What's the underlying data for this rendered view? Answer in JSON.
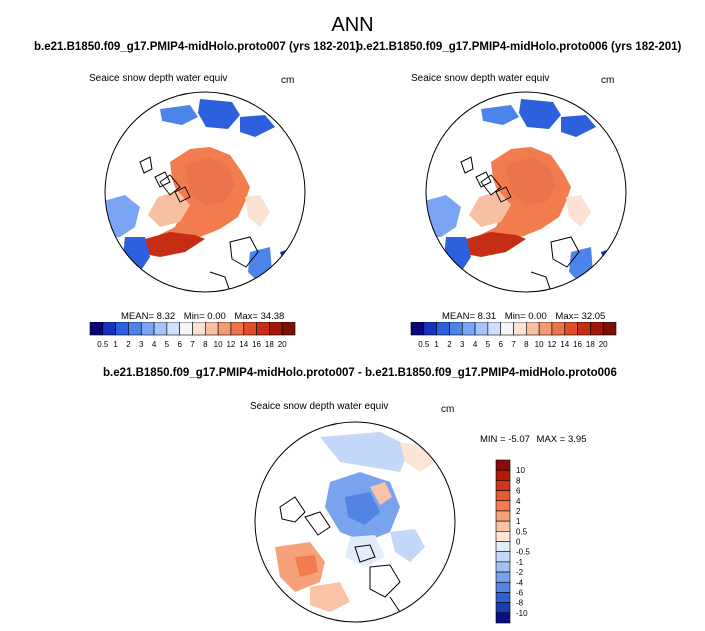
{
  "figure": {
    "title": "ANN",
    "panels": [
      {
        "case_title": "b.e21.B1850.f09_g17.PMIP4-midHolo.proto007 (yrs 182-201)",
        "variable": "Seaice snow depth water equiv",
        "units": "cm",
        "stats": {
          "mean_label": "MEAN=",
          "mean": "8.32",
          "min_label": "Min=",
          "min": "0.00",
          "max_label": "Max=",
          "max": "34.38"
        }
      },
      {
        "case_title": "b.e21.B1850.f09_g17.PMIP4-midHolo.proto006 (yrs 182-201)",
        "variable": "Seaice snow depth water equiv",
        "units": "cm",
        "stats": {
          "mean_label": "MEAN=",
          "mean": "8.31",
          "min_label": "Min=",
          "min": "0.00",
          "max_label": "Max=",
          "max": "32.05"
        }
      }
    ],
    "diff_panel": {
      "case_title": "b.e21.B1850.f09_g17.PMIP4-midHolo.proto007 - b.e21.B1850.f09_g17.PMIP4-midHolo.proto006",
      "variable": "Seaice snow depth water equiv",
      "units": "cm",
      "stats": {
        "min_label": "MIN =",
        "min": "-5.07",
        "max_label": "MAX =",
        "max": "3.95"
      }
    },
    "colorbar_abs": {
      "labels": [
        "0.5",
        "1",
        "2",
        "3",
        "4",
        "5",
        "6",
        "7",
        "8",
        "10",
        "12",
        "14",
        "16",
        "18",
        "20"
      ],
      "colors": [
        "#08087a",
        "#1535c0",
        "#2c60dc",
        "#4d84ec",
        "#7aa5f4",
        "#a6c4f9",
        "#d0dffb",
        "#f4f6fb",
        "#fbe2d3",
        "#f8c0a2",
        "#f29a74",
        "#eb744c",
        "#de4e2a",
        "#c52e14",
        "#a01708",
        "#7a0f03"
      ]
    },
    "colorbar_diff": {
      "labels": [
        "10",
        "8",
        "6",
        "4",
        "2",
        "1",
        "0.5",
        "0",
        "-0.5",
        "-1",
        "-2",
        "-4",
        "-6",
        "-8",
        "-10"
      ],
      "colors": [
        "#8b0c04",
        "#b41a0a",
        "#d23516",
        "#e85a2d",
        "#f27c4d",
        "#f7a17a",
        "#fac3a6",
        "#fde6d6",
        "#e2ecfb",
        "#c3d7f8",
        "#a1bff4",
        "#7aa3ee",
        "#5384e4",
        "#2f60d2",
        "#1d3bb0",
        "#0a0f82"
      ]
    }
  }
}
